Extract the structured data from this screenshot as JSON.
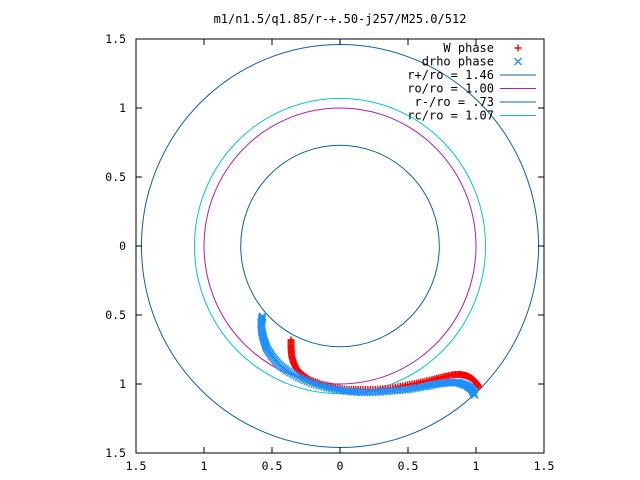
{
  "chart_data": {
    "type": "scatter",
    "title": "m1/n1.5/q1.85/r-+.50-j257/M25.0/512",
    "xlim": [
      -1.5,
      1.5
    ],
    "ylim": [
      -1.5,
      1.5
    ],
    "xticks": [
      -1.5,
      -1,
      -0.5,
      0,
      0.5,
      1,
      1.5
    ],
    "yticks": [
      -1.5,
      -1,
      -0.5,
      0,
      0.5,
      1,
      1.5
    ],
    "xtick_labels": [
      "1.5",
      "1",
      "0.5",
      "0",
      "0.5",
      "1",
      "1.5"
    ],
    "ytick_labels": [
      "1.5",
      "1",
      "0.5",
      "0",
      "0.5",
      "1",
      "1.5"
    ],
    "grid": false,
    "legend_position": "top-right",
    "circles": [
      {
        "label": "r+/ro = 1.46",
        "radius": 1.46,
        "color": "#0d5fa8"
      },
      {
        "label": "ro/ro = 1.00",
        "radius": 1.0,
        "color": "#b01ab0"
      },
      {
        "label": "r-/ro = .73",
        "radius": 0.73,
        "color": "#0d5fa8"
      },
      {
        "label": "rc/ro = 1.07",
        "radius": 1.07,
        "color": "#00c8c8"
      }
    ],
    "series": [
      {
        "name": "W phase",
        "marker": "plus",
        "color": "#ff0000",
        "points": [
          [
            -0.36,
            -0.68
          ],
          [
            -0.36,
            -0.74
          ],
          [
            -0.355,
            -0.8
          ],
          [
            -0.34,
            -0.85
          ],
          [
            -0.32,
            -0.89
          ],
          [
            -0.28,
            -0.93
          ],
          [
            -0.22,
            -0.97
          ],
          [
            -0.14,
            -1.0
          ],
          [
            -0.05,
            -1.02
          ],
          [
            0.05,
            -1.04
          ],
          [
            0.15,
            -1.04
          ],
          [
            0.26,
            -1.04
          ],
          [
            0.37,
            -1.03
          ],
          [
            0.48,
            -1.01
          ],
          [
            0.58,
            -0.99
          ],
          [
            0.67,
            -0.97
          ],
          [
            0.75,
            -0.95
          ],
          [
            0.82,
            -0.935
          ],
          [
            0.88,
            -0.93
          ],
          [
            0.93,
            -0.94
          ],
          [
            0.97,
            -0.96
          ],
          [
            1.0,
            -0.99
          ],
          [
            1.02,
            -1.02
          ]
        ]
      },
      {
        "name": "drho phase",
        "marker": "cross",
        "color": "#1e90ff",
        "points": [
          [
            -0.57,
            -0.51
          ],
          [
            -0.58,
            -0.56
          ],
          [
            -0.575,
            -0.62
          ],
          [
            -0.56,
            -0.68
          ],
          [
            -0.54,
            -0.74
          ],
          [
            -0.5,
            -0.8
          ],
          [
            -0.45,
            -0.86
          ],
          [
            -0.38,
            -0.91
          ],
          [
            -0.29,
            -0.96
          ],
          [
            -0.19,
            -1.0
          ],
          [
            -0.08,
            -1.03
          ],
          [
            0.03,
            -1.05
          ],
          [
            0.14,
            -1.06
          ],
          [
            0.26,
            -1.06
          ],
          [
            0.38,
            -1.05
          ],
          [
            0.5,
            -1.04
          ],
          [
            0.61,
            -1.02
          ],
          [
            0.71,
            -1.0
          ],
          [
            0.8,
            -0.99
          ],
          [
            0.87,
            -0.99
          ],
          [
            0.93,
            -1.01
          ],
          [
            0.97,
            -1.04
          ],
          [
            0.99,
            -1.08
          ]
        ]
      }
    ]
  }
}
